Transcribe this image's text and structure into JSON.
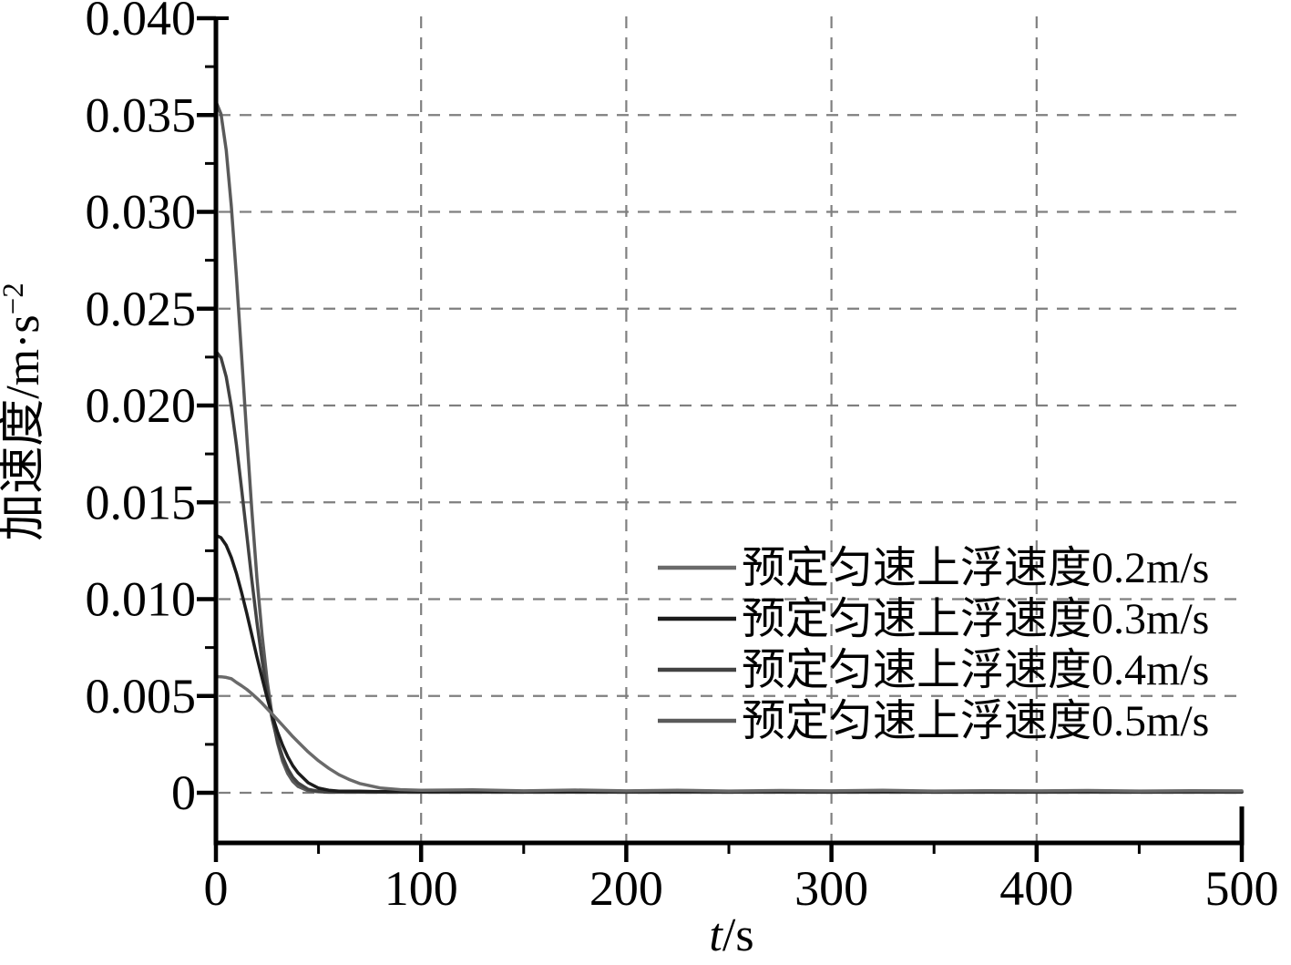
{
  "figure": {
    "background": "#ffffff",
    "title": ""
  },
  "chart_data": {
    "type": "line",
    "title": "",
    "xlabel": "t/s",
    "xlabel_parts": {
      "var": "t",
      "rest": "/s"
    },
    "ylabel": "加速度/m·s⁻²",
    "ylabel_parts": {
      "base": "加速度/m·s",
      "sup": "−2"
    },
    "xlim": [
      0,
      500
    ],
    "ylim": [
      -0.0025,
      0.04
    ],
    "x_tick_values": [
      0,
      100,
      200,
      300,
      400,
      500
    ],
    "x_tick_labels": [
      "0",
      "100",
      "200",
      "300",
      "400",
      "500"
    ],
    "x_minor_tick_values": [
      50,
      150,
      250,
      350,
      450
    ],
    "y_tick_values": [
      0.04,
      0.035,
      0.03,
      0.025,
      0.02,
      0.015,
      0.01,
      0.005,
      0
    ],
    "y_tick_labels": [
      "0.040",
      "0.035",
      "0.030",
      "0.025",
      "0.020",
      "0.015",
      "0.010",
      "0.005",
      "0"
    ],
    "y_minor_tick_values": [
      0.0375,
      0.0325,
      0.0275,
      0.0225,
      0.0175,
      0.0125,
      0.0075,
      0.0025
    ],
    "grid": {
      "style": "dashed",
      "major_only": true,
      "h_grid_values": [
        0.035,
        0.03,
        0.025,
        0.02,
        0.015,
        0.01,
        0.005,
        0
      ],
      "v_grid_values": [
        100,
        200,
        300,
        400
      ]
    },
    "legend": {
      "position": "center-right",
      "border": false
    },
    "series": [
      {
        "name": "预定匀速上浮速度0.2m/s",
        "color": "#6a6a6a",
        "points": [
          [
            0,
            0.006
          ],
          [
            2.5,
            0.00599
          ],
          [
            5,
            0.00596
          ],
          [
            7.5,
            0.00589
          ],
          [
            10,
            0.0057
          ],
          [
            12.5,
            0.00553
          ],
          [
            15,
            0.00534
          ],
          [
            17.5,
            0.00512
          ],
          [
            20,
            0.00488
          ],
          [
            22.5,
            0.00462
          ],
          [
            25,
            0.00434
          ],
          [
            27.5,
            0.00406
          ],
          [
            30,
            0.00377
          ],
          [
            32.5,
            0.00348
          ],
          [
            35,
            0.00319
          ],
          [
            37.5,
            0.0029
          ],
          [
            40,
            0.00263
          ],
          [
            45,
            0.00211
          ],
          [
            50,
            0.00165
          ],
          [
            55,
            0.00126
          ],
          [
            60,
            0.00093
          ],
          [
            65,
            0.00068
          ],
          [
            70,
            0.00048
          ],
          [
            80,
            0.00025
          ],
          [
            90,
            0.00016
          ],
          [
            100,
            0.00013
          ],
          [
            125,
            0.00015
          ],
          [
            150,
            0.0001
          ],
          [
            175,
            0.00014
          ],
          [
            200,
            0.0001
          ],
          [
            225,
            0.00013
          ],
          [
            250,
            9e-05
          ],
          [
            275,
            0.00012
          ],
          [
            300,
            0.0001
          ],
          [
            325,
            0.00013
          ],
          [
            350,
            9e-05
          ],
          [
            375,
            0.00011
          ],
          [
            400,
            0.0001
          ],
          [
            425,
            0.00012
          ],
          [
            450,
            9e-05
          ],
          [
            475,
            0.00011
          ],
          [
            500,
            0.0001
          ]
        ]
      },
      {
        "name": "预定匀速上浮速度0.3m/s",
        "color": "#1c1c1c",
        "points": [
          [
            0,
            0.0133
          ],
          [
            2.5,
            0.01317
          ],
          [
            5,
            0.01278
          ],
          [
            7.5,
            0.01215
          ],
          [
            10,
            0.01133
          ],
          [
            12.5,
            0.01036
          ],
          [
            15,
            0.00928
          ],
          [
            17.5,
            0.00815
          ],
          [
            20,
            0.00701
          ],
          [
            22.5,
            0.00592
          ],
          [
            25,
            0.00489
          ],
          [
            27.5,
            0.00397
          ],
          [
            30,
            0.00315
          ],
          [
            32.5,
            0.00245
          ],
          [
            35,
            0.00187
          ],
          [
            37.5,
            0.0014
          ],
          [
            40,
            0.00103
          ],
          [
            45,
            0.00052
          ],
          [
            50,
            0.00024
          ],
          [
            55,
            0.00013
          ],
          [
            60,
            8e-05
          ],
          [
            70,
            8e-05
          ],
          [
            80,
            6e-05
          ],
          [
            90,
            8e-05
          ],
          [
            100,
            6e-05
          ],
          [
            125,
            8e-05
          ],
          [
            150,
            6e-05
          ],
          [
            175,
            7e-05
          ],
          [
            200,
            6e-05
          ],
          [
            225,
            8e-05
          ],
          [
            250,
            6e-05
          ],
          [
            275,
            7e-05
          ],
          [
            300,
            6e-05
          ],
          [
            325,
            8e-05
          ],
          [
            350,
            6e-05
          ],
          [
            375,
            7e-05
          ],
          [
            400,
            6e-05
          ],
          [
            425,
            8e-05
          ],
          [
            450,
            6e-05
          ],
          [
            475,
            7e-05
          ],
          [
            500,
            7e-05
          ]
        ]
      },
      {
        "name": "预定匀速上浮速度0.4m/s",
        "color": "#424242",
        "points": [
          [
            0,
            0.0228
          ],
          [
            2.5,
            0.02246
          ],
          [
            5,
            0.02148
          ],
          [
            7.5,
            0.01994
          ],
          [
            10,
            0.01797
          ],
          [
            12.5,
            0.01572
          ],
          [
            15,
            0.01335
          ],
          [
            17.5,
            0.011
          ],
          [
            20,
            0.0088
          ],
          [
            22.5,
            0.00683
          ],
          [
            25,
            0.00515
          ],
          [
            27.5,
            0.00377
          ],
          [
            30,
            0.00268
          ],
          [
            32.5,
            0.00185
          ],
          [
            35,
            0.00124
          ],
          [
            37.5,
            0.0008
          ],
          [
            40,
            0.00051
          ],
          [
            45,
            0.00018
          ],
          [
            50,
            8e-05
          ],
          [
            55,
            5e-05
          ],
          [
            60,
            5e-05
          ],
          [
            70,
            4e-05
          ],
          [
            80,
            5e-05
          ],
          [
            90,
            4e-05
          ],
          [
            100,
            5e-05
          ],
          [
            125,
            4e-05
          ],
          [
            150,
            5e-05
          ],
          [
            175,
            4e-05
          ],
          [
            200,
            5e-05
          ],
          [
            225,
            4e-05
          ],
          [
            250,
            5e-05
          ],
          [
            275,
            4e-05
          ],
          [
            300,
            5e-05
          ],
          [
            325,
            4e-05
          ],
          [
            350,
            5e-05
          ],
          [
            375,
            4e-05
          ],
          [
            400,
            5e-05
          ],
          [
            425,
            4e-05
          ],
          [
            450,
            5e-05
          ],
          [
            475,
            4e-05
          ],
          [
            500,
            4e-05
          ]
        ]
      },
      {
        "name": "预定匀速上浮速度0.5m/s",
        "color": "#5a5a5a",
        "points": [
          [
            0,
            0.0357
          ],
          [
            2.5,
            0.03505
          ],
          [
            5,
            0.03319
          ],
          [
            7.5,
            0.03029
          ],
          [
            10,
            0.02666
          ],
          [
            12.5,
            0.02262
          ],
          [
            15,
            0.0185
          ],
          [
            17.5,
            0.01459
          ],
          [
            20,
            0.01109
          ],
          [
            22.5,
            0.00813
          ],
          [
            25,
            0.00575
          ],
          [
            27.5,
            0.00392
          ],
          [
            30,
            0.00257
          ],
          [
            32.5,
            0.00163
          ],
          [
            35,
            0.001
          ],
          [
            37.5,
            0.00059
          ],
          [
            40,
            0.00033
          ],
          [
            45,
            0.0001
          ],
          [
            50,
            5e-05
          ],
          [
            55,
            3e-05
          ],
          [
            60,
            3e-05
          ],
          [
            70,
            3e-05
          ],
          [
            80,
            3e-05
          ],
          [
            90,
            3e-05
          ],
          [
            100,
            3e-05
          ],
          [
            150,
            3e-05
          ],
          [
            200,
            3e-05
          ],
          [
            250,
            3e-05
          ],
          [
            300,
            3e-05
          ],
          [
            350,
            3e-05
          ],
          [
            400,
            3e-05
          ],
          [
            450,
            3e-05
          ],
          [
            500,
            3e-05
          ]
        ]
      }
    ]
  },
  "style": {
    "axis_color": "#000000",
    "grid_color": "#7f7f7f",
    "text_color": "#000000"
  }
}
